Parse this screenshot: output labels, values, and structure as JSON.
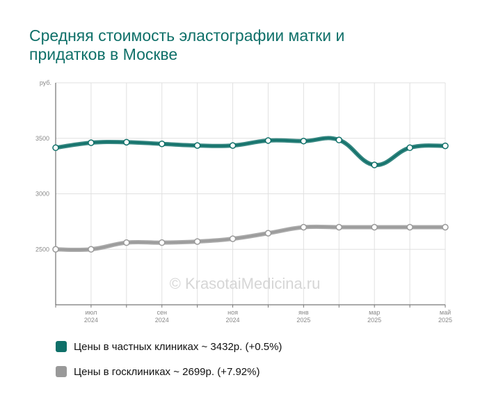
{
  "chart_data": {
    "type": "line",
    "title": "Средняя стоимость эластографии матки и\nпридатков в Москве",
    "ylabel": "руб.",
    "ylim": [
      2000,
      4000
    ],
    "yticks": [
      2500,
      3000,
      3500
    ],
    "x_tick_labels": [
      {
        "month": "июл",
        "year": "2024"
      },
      {
        "month": "сен",
        "year": "2024"
      },
      {
        "month": "ноя",
        "year": "2024"
      },
      {
        "month": "янв",
        "year": "2025"
      },
      {
        "month": "мар",
        "year": "2025"
      },
      {
        "month": "май",
        "year": "2025"
      }
    ],
    "categories": [
      "июн 2024",
      "июл 2024",
      "авг 2024",
      "сен 2024",
      "окт 2024",
      "ноя 2024",
      "дек 2024",
      "янв 2025",
      "фев 2025",
      "мар 2025",
      "апр 2025",
      "май 2025"
    ],
    "series": [
      {
        "name": "Цены в частных клиниках",
        "color": "#0f7069",
        "values": [
          3415,
          3460,
          3465,
          3450,
          3435,
          3435,
          3480,
          3475,
          3485,
          3260,
          3415,
          3432
        ]
      },
      {
        "name": "Цены в госклиниках",
        "color": "#999999",
        "values": [
          2500,
          2500,
          2560,
          2560,
          2570,
          2595,
          2645,
          2699,
          2699,
          2699,
          2699,
          2699
        ]
      }
    ],
    "legend": [
      {
        "text": "Цены в частных клиниках ~ 3432р. (+0.5%)",
        "color": "#0f7069"
      },
      {
        "text": "Цены в госклиниках ~ 2699р. (+7.92%)",
        "color": "#999999"
      }
    ],
    "watermark": "© KrasotaiMedicina.ru",
    "grid": true,
    "legend_placement": "bottom-left"
  }
}
